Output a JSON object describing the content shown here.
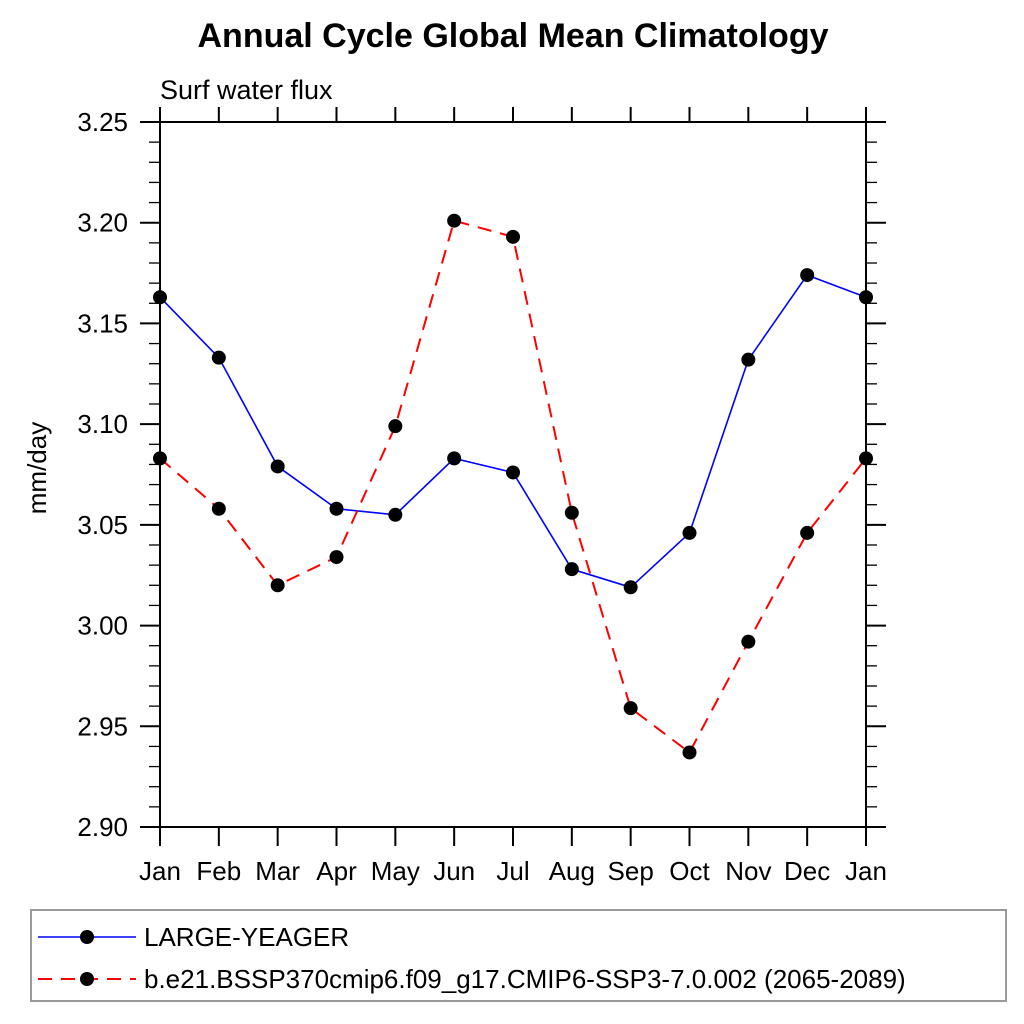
{
  "header": {
    "title": "Annual Cycle Global Mean Climatology",
    "subtitle": "Surf water flux"
  },
  "chart_data": {
    "type": "line",
    "title": "Annual Cycle Global Mean Climatology",
    "subtitle": "Surf water flux",
    "xlabel": "",
    "ylabel": "mm/day",
    "categories": [
      "Jan",
      "Feb",
      "Mar",
      "Apr",
      "May",
      "Jun",
      "Jul",
      "Aug",
      "Sep",
      "Oct",
      "Nov",
      "Dec",
      "Jan"
    ],
    "series": [
      {
        "name": "LARGE-YEAGER",
        "line_color": "#0000ff",
        "line_style": "solid",
        "marker": "filled-circle",
        "marker_color": "#000000",
        "values": [
          3.163,
          3.133,
          3.079,
          3.058,
          3.055,
          3.083,
          3.076,
          3.028,
          3.019,
          3.046,
          3.132,
          3.174,
          3.163
        ]
      },
      {
        "name": "b.e21.BSSP370cmip6.f09_g17.CMIP6-SSP3-7.0.002 (2065-2089)",
        "line_color": "#ff0000",
        "line_style": "dashed",
        "marker": "filled-circle",
        "marker_color": "#000000",
        "values": [
          3.083,
          3.058,
          3.02,
          3.034,
          3.099,
          3.201,
          3.193,
          3.056,
          2.959,
          2.937,
          2.992,
          3.046,
          3.083
        ]
      }
    ],
    "ylim": [
      2.9,
      3.25
    ],
    "y_major_step": 0.05,
    "y_minor_step": 0.01,
    "y_tick_labels": [
      "2.90",
      "2.95",
      "3.00",
      "3.05",
      "3.10",
      "3.15",
      "3.20",
      "3.25"
    ],
    "grid": false,
    "axis_color": "#000000",
    "legend_position": "bottom-left-box",
    "legend_border_color": "#999999"
  }
}
